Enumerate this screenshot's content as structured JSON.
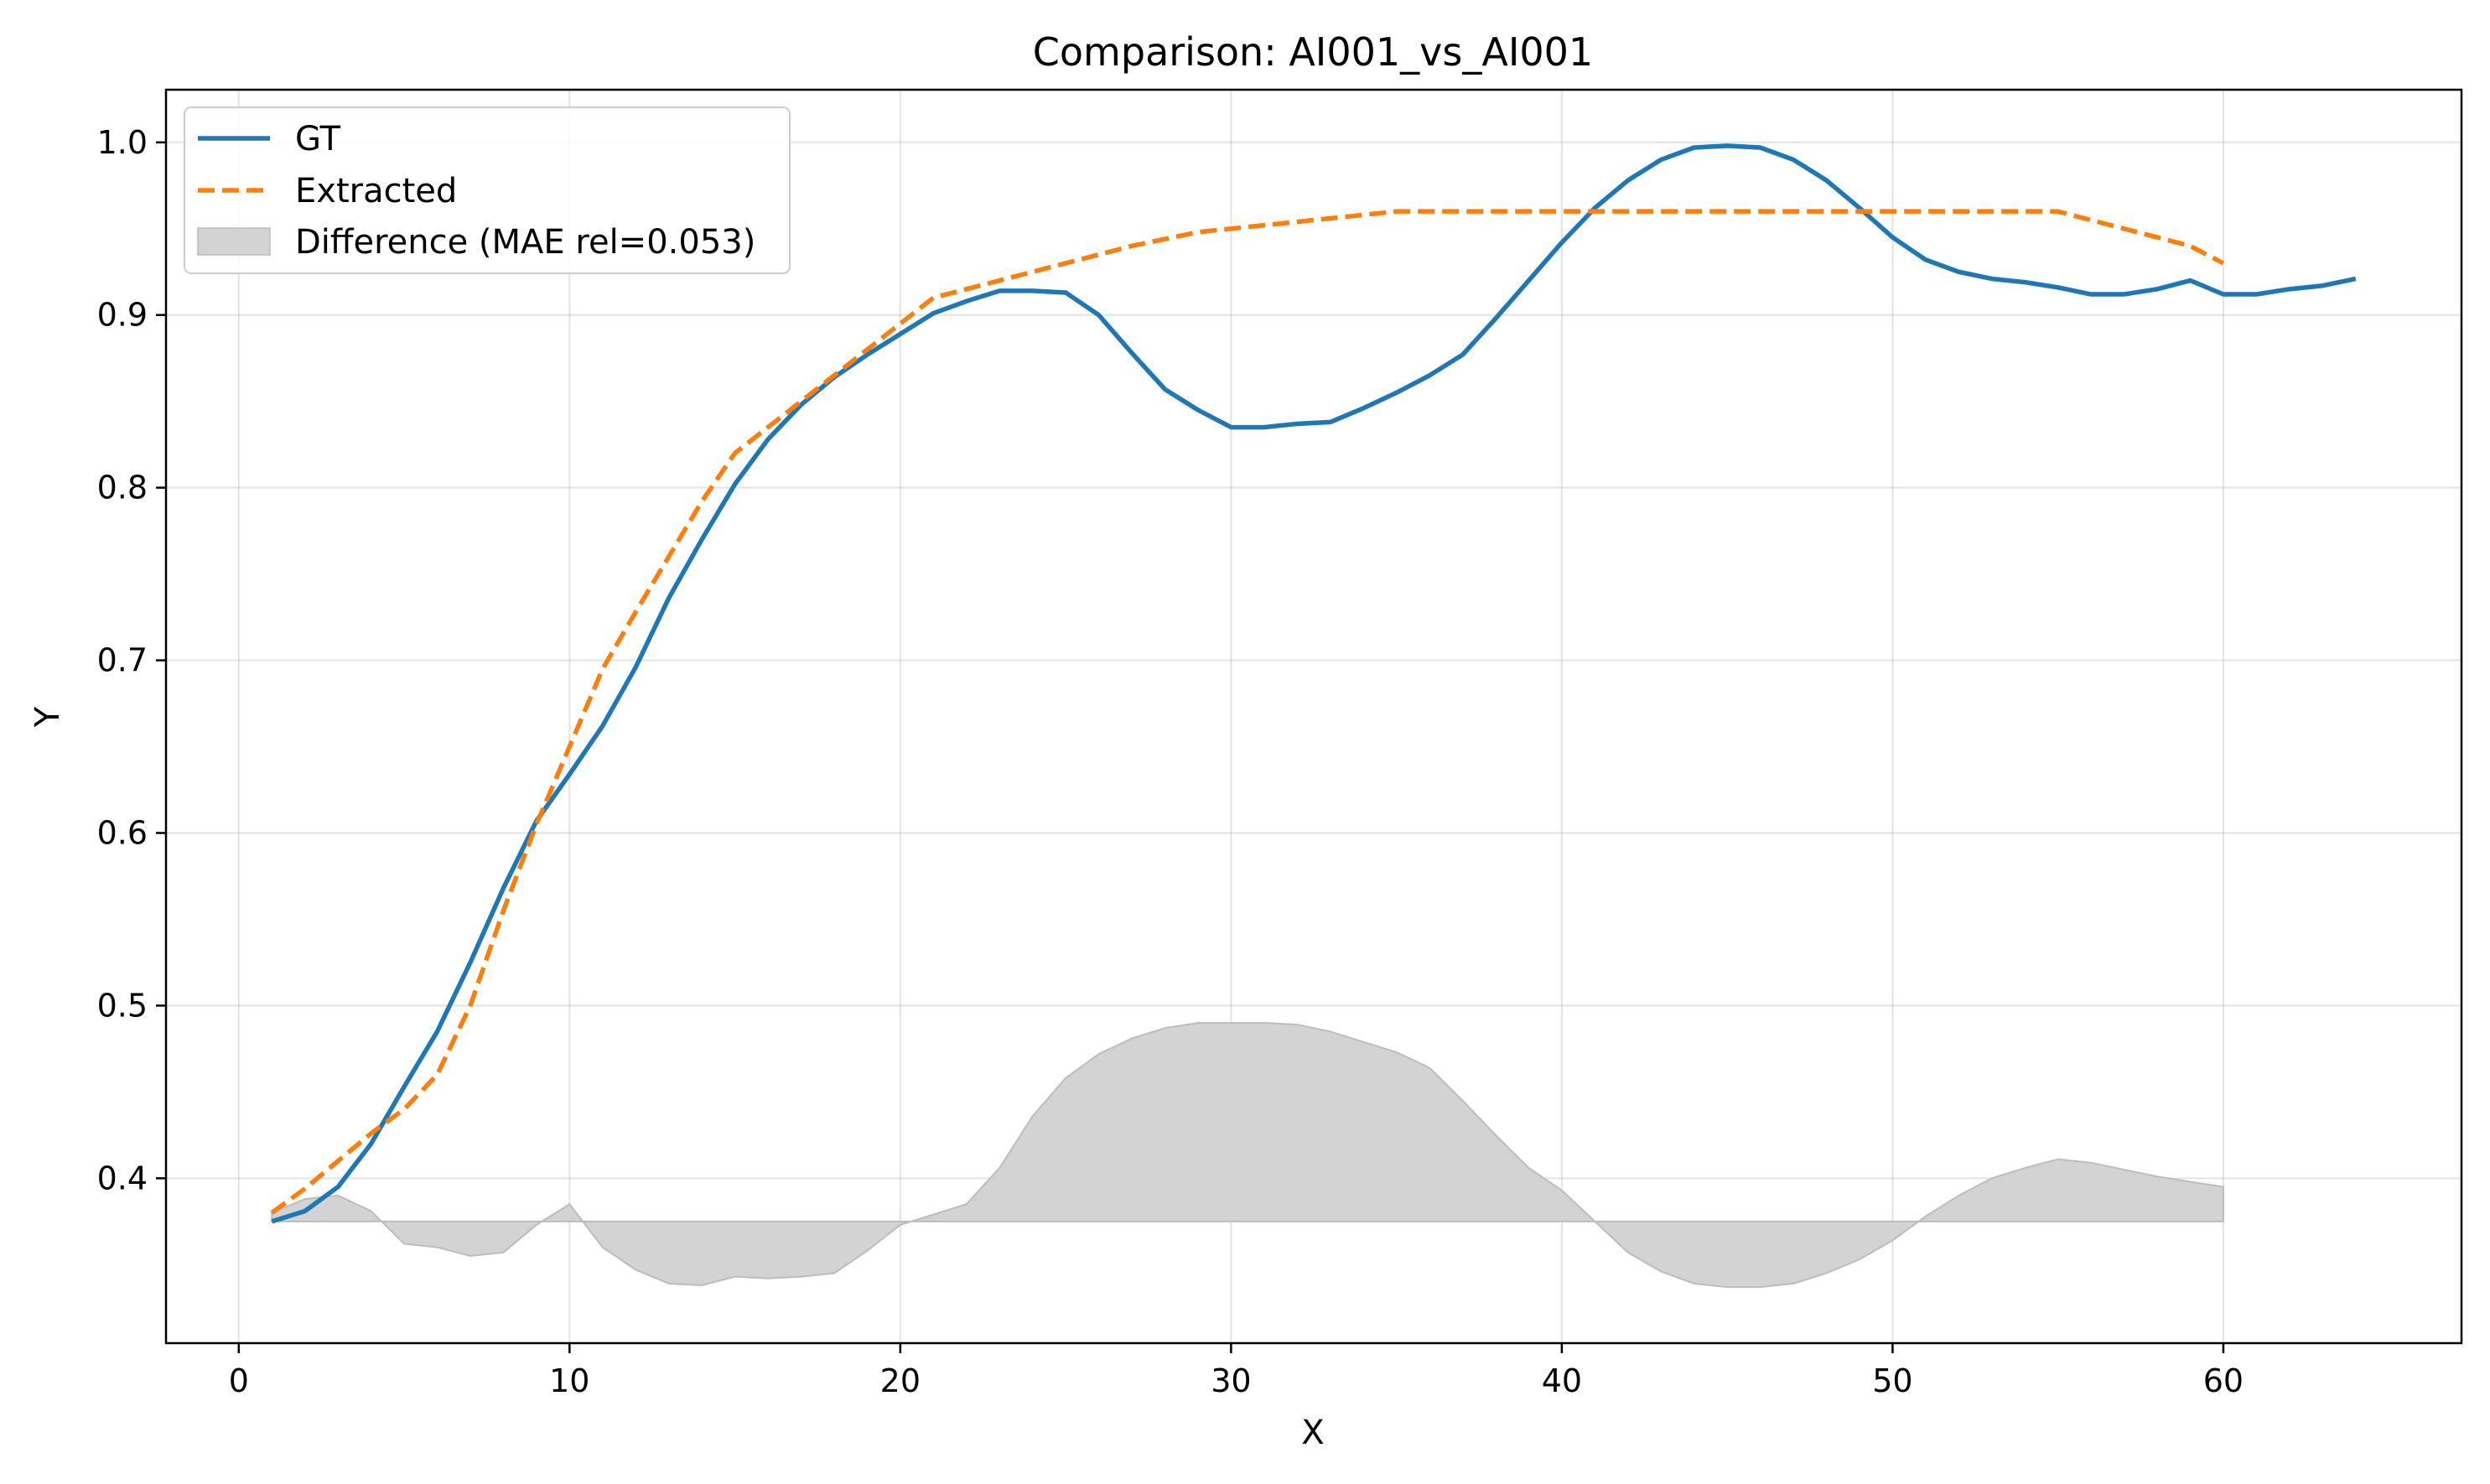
{
  "chart_data": {
    "type": "line",
    "title": "Comparison: AI001_vs_AI001",
    "xlabel": "X",
    "ylabel": "Y",
    "xlim": [
      -2.2,
      67.2
    ],
    "ylim": [
      0.3045,
      1.0305
    ],
    "xticks": [
      0,
      10,
      20,
      30,
      40,
      50,
      60
    ],
    "yticks": [
      0.4,
      0.5,
      0.6,
      0.7,
      0.8,
      0.9,
      1.0
    ],
    "xtick_labels": [
      "0",
      "10",
      "20",
      "30",
      "40",
      "50",
      "60"
    ],
    "ytick_labels": [
      "0.4",
      "0.5",
      "0.6",
      "0.7",
      "0.8",
      "0.9",
      "1.0"
    ],
    "grid": true,
    "legend_position": "upper-left",
    "series": [
      {
        "name": "GT",
        "color": "#1f77b4",
        "style": "solid",
        "x": [
          1,
          2,
          3,
          4,
          5,
          6,
          7,
          8,
          9,
          10,
          11,
          12,
          13,
          14,
          15,
          16,
          17,
          18,
          19,
          20,
          21,
          22,
          23,
          24,
          25,
          26,
          27,
          28,
          29,
          30,
          31,
          32,
          33,
          34,
          35,
          36,
          37,
          38,
          39,
          40,
          41,
          42,
          43,
          44,
          45,
          46,
          47,
          48,
          49,
          50,
          51,
          52,
          53,
          54,
          55,
          56,
          57,
          58,
          59,
          60,
          61,
          62,
          63,
          64
        ],
        "y": [
          0.375,
          0.381,
          0.395,
          0.42,
          0.453,
          0.485,
          0.525,
          0.568,
          0.607,
          0.634,
          0.662,
          0.696,
          0.736,
          0.77,
          0.802,
          0.828,
          0.848,
          0.864,
          0.877,
          0.889,
          0.901,
          0.908,
          0.914,
          0.914,
          0.913,
          0.9,
          0.878,
          0.857,
          0.845,
          0.835,
          0.835,
          0.837,
          0.838,
          0.846,
          0.855,
          0.865,
          0.877,
          0.898,
          0.92,
          0.942,
          0.962,
          0.978,
          0.99,
          0.997,
          0.998,
          0.997,
          0.99,
          0.978,
          0.962,
          0.945,
          0.932,
          0.925,
          0.921,
          0.919,
          0.916,
          0.912,
          0.912,
          0.915,
          0.92,
          0.912,
          0.912,
          0.915,
          0.917,
          0.921
        ]
      },
      {
        "name": "Extracted",
        "color": "#ff7f0e",
        "style": "dashed",
        "x": [
          1,
          2,
          3,
          4,
          5,
          6,
          7,
          8,
          9,
          10,
          11,
          12,
          13,
          14,
          15,
          16,
          17,
          18,
          19,
          20,
          21,
          22,
          23,
          24,
          25,
          26,
          27,
          28,
          29,
          30,
          31,
          32,
          33,
          34,
          35,
          36,
          37,
          38,
          39,
          40,
          41,
          42,
          43,
          44,
          45,
          46,
          47,
          48,
          49,
          50,
          51,
          52,
          53,
          54,
          55,
          56,
          57,
          58,
          59,
          60
        ],
        "y": [
          0.38,
          0.394,
          0.41,
          0.426,
          0.44,
          0.46,
          0.5,
          0.555,
          0.605,
          0.65,
          0.695,
          0.728,
          0.76,
          0.792,
          0.82,
          0.835,
          0.85,
          0.865,
          0.88,
          0.895,
          0.91,
          0.915,
          0.92,
          0.925,
          0.93,
          0.935,
          0.94,
          0.944,
          0.948,
          0.95,
          0.952,
          0.954,
          0.956,
          0.958,
          0.96,
          0.96,
          0.96,
          0.96,
          0.96,
          0.96,
          0.96,
          0.96,
          0.96,
          0.96,
          0.96,
          0.96,
          0.96,
          0.96,
          0.96,
          0.96,
          0.96,
          0.96,
          0.96,
          0.96,
          0.96,
          0.955,
          0.95,
          0.945,
          0.94,
          0.93
        ]
      },
      {
        "name": "Difference (MAE rel=0.053)",
        "color": "#d3d3d3",
        "style": "fill",
        "baseline": 0.375,
        "x": [
          1,
          2,
          3,
          4,
          5,
          6,
          7,
          8,
          9,
          10,
          11,
          12,
          13,
          14,
          15,
          16,
          17,
          18,
          19,
          20,
          21,
          22,
          23,
          24,
          25,
          26,
          27,
          28,
          29,
          30,
          31,
          32,
          33,
          34,
          35,
          36,
          37,
          38,
          39,
          40,
          41,
          42,
          43,
          44,
          45,
          46,
          47,
          48,
          49,
          50,
          51,
          52,
          53,
          54,
          55,
          56,
          57,
          58,
          59,
          60
        ],
        "y": [
          0.38,
          0.388,
          0.39,
          0.381,
          0.362,
          0.36,
          0.355,
          0.357,
          0.373,
          0.385,
          0.36,
          0.347,
          0.339,
          0.338,
          0.343,
          0.342,
          0.343,
          0.345,
          0.358,
          0.373,
          0.379,
          0.385,
          0.406,
          0.436,
          0.458,
          0.472,
          0.481,
          0.487,
          0.49,
          0.49,
          0.49,
          0.489,
          0.485,
          0.479,
          0.473,
          0.464,
          0.445,
          0.425,
          0.406,
          0.393,
          0.375,
          0.357,
          0.346,
          0.339,
          0.337,
          0.337,
          0.339,
          0.345,
          0.353,
          0.364,
          0.378,
          0.39,
          0.4,
          0.406,
          0.411,
          0.409,
          0.405,
          0.401,
          0.398,
          0.395
        ]
      }
    ]
  }
}
